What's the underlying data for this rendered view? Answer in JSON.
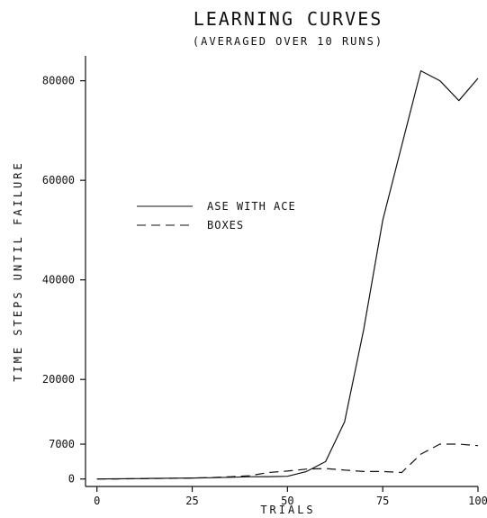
{
  "chart_data": {
    "type": "line",
    "title": "LEARNING CURVES",
    "subtitle": "(AVERAGED OVER 10 RUNS)",
    "xlabel": "TRIALS",
    "ylabel": "TIME STEPS UNTIL FAILURE",
    "xlim": [
      -3,
      100
    ],
    "ylim": [
      -1500,
      85000
    ],
    "x_ticks": [
      0,
      25,
      50,
      75,
      100
    ],
    "x_tick_labels": [
      "0",
      "25",
      "50",
      "75",
      "100"
    ],
    "y_ticks": [
      0,
      7000,
      20000,
      40000,
      60000,
      80000
    ],
    "y_tick_labels": [
      "0",
      "7000",
      "20000",
      "40000",
      "60000",
      "80000"
    ],
    "grid": false,
    "legend_position": "center-left",
    "series": [
      {
        "name": "ASE WITH ACE",
        "style": "solid",
        "color": "#111111",
        "points": [
          [
            0,
            0
          ],
          [
            5,
            30
          ],
          [
            10,
            80
          ],
          [
            15,
            120
          ],
          [
            20,
            160
          ],
          [
            25,
            200
          ],
          [
            30,
            260
          ],
          [
            35,
            350
          ],
          [
            40,
            450
          ],
          [
            45,
            480
          ],
          [
            50,
            550
          ],
          [
            55,
            1500
          ],
          [
            60,
            3500
          ],
          [
            65,
            11500
          ],
          [
            70,
            30000
          ],
          [
            75,
            52000
          ],
          [
            80,
            67000
          ],
          [
            85,
            82000
          ],
          [
            90,
            80000
          ],
          [
            95,
            76000
          ],
          [
            100,
            80500
          ]
        ]
      },
      {
        "name": "BOXES",
        "style": "dashed",
        "color": "#111111",
        "points": [
          [
            0,
            0
          ],
          [
            5,
            20
          ],
          [
            10,
            60
          ],
          [
            15,
            100
          ],
          [
            20,
            150
          ],
          [
            25,
            200
          ],
          [
            30,
            300
          ],
          [
            35,
            450
          ],
          [
            40,
            650
          ],
          [
            45,
            1300
          ],
          [
            50,
            1600
          ],
          [
            55,
            2000
          ],
          [
            60,
            2100
          ],
          [
            65,
            1800
          ],
          [
            70,
            1500
          ],
          [
            75,
            1500
          ],
          [
            80,
            1300
          ],
          [
            85,
            5000
          ],
          [
            90,
            7000
          ],
          [
            95,
            7000
          ],
          [
            100,
            6700
          ]
        ]
      }
    ]
  }
}
